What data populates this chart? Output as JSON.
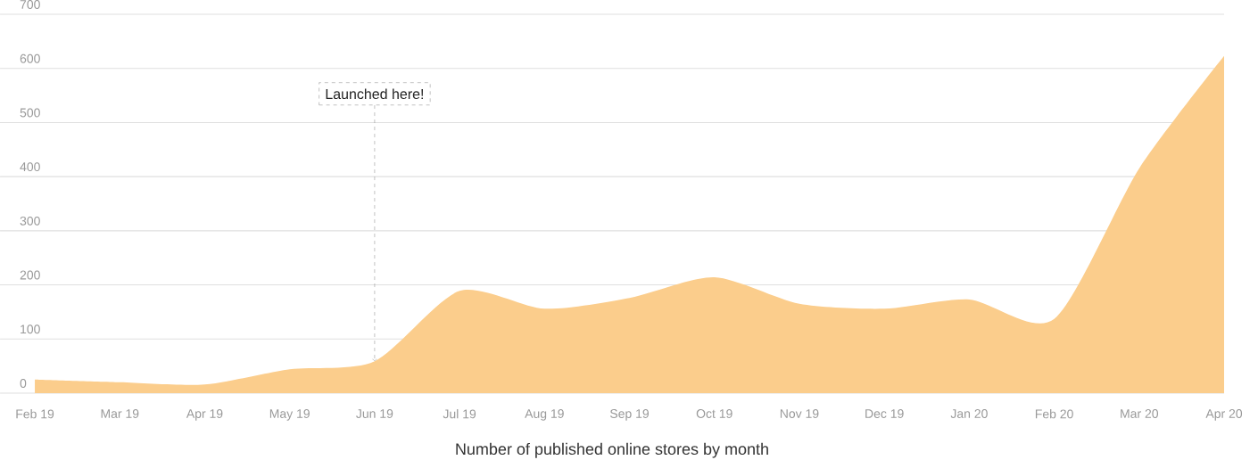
{
  "chart_data": {
    "type": "area",
    "xlabel": "Number of published online stores by month",
    "categories": [
      "Feb 19",
      "Mar 19",
      "Apr 19",
      "May 19",
      "Jun 19",
      "Jul 19",
      "Aug 19",
      "Sep 19",
      "Oct 19",
      "Nov 19",
      "Dec 19",
      "Jan 20",
      "Feb 20",
      "Mar 20",
      "Apr 20"
    ],
    "values": [
      25,
      20,
      16,
      44,
      59,
      189,
      156,
      176,
      214,
      165,
      156,
      173,
      137,
      415,
      623
    ],
    "color": "#fbcd8c",
    "ylim": [
      0,
      700
    ],
    "yticks": [
      0,
      100,
      200,
      300,
      400,
      500,
      600,
      700
    ],
    "grid": "y",
    "annotations": [
      {
        "text": "Launched here!",
        "x": "Jun 19",
        "y": 59
      }
    ]
  }
}
